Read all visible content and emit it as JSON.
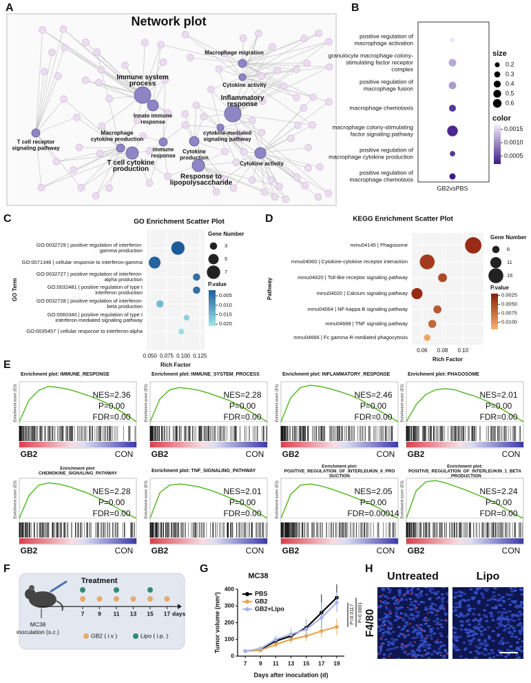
{
  "panel_labels": [
    "A",
    "B",
    "C",
    "D",
    "E",
    "F",
    "G",
    "H"
  ],
  "network": {
    "title": "Network plot",
    "nodes": [
      {
        "label": [
          "Immune system",
          "process"
        ]
      },
      {
        "label": [
          "Innate immune",
          "response"
        ]
      },
      {
        "label": [
          "Macrophage migration"
        ]
      },
      {
        "label": [
          "Cytokine activity"
        ]
      },
      {
        "label": [
          "Inflammatory",
          "response"
        ]
      },
      {
        "label": [
          "cytokine-mediated",
          "signaling pathway"
        ]
      },
      {
        "label": [
          "Macrophage",
          "cytokine production"
        ]
      },
      {
        "label": [
          "immune",
          "response"
        ]
      },
      {
        "label": [
          "Cytokine",
          "production"
        ]
      },
      {
        "label": [
          "T cell cytokine",
          "production"
        ]
      },
      {
        "label": [
          "Response to",
          "lipopolysaccharide"
        ]
      },
      {
        "label": [
          "Cytokine activity"
        ]
      },
      {
        "label": [
          "T cell receptor",
          "signaling pathway"
        ]
      }
    ]
  },
  "chart_data": [
    {
      "type": "dot",
      "categories": [
        [
          "positive regulation of",
          "macrophage activation"
        ],
        [
          "granulocyte macrophage colony-",
          "stimulating factor receptor",
          "complex"
        ],
        [
          "positive regulation of",
          "macrophage fusion"
        ],
        [
          "macrophage chemotaxis"
        ],
        [
          "macrophage colony-stimulating",
          "factor signaling pathway"
        ],
        [
          "positive regulation of",
          "macrophage cytokine production"
        ],
        [
          "positive regulation of",
          "macrophage chemotaxis"
        ]
      ],
      "column": "GB2vsPBS",
      "size": [
        0.1,
        0.3,
        0.3,
        0.25,
        0.6,
        0.15,
        0.2
      ],
      "p_values": [
        0.0016,
        0.0012,
        0.0011,
        0.0004,
        0.0003,
        0.0004,
        0.0002
      ],
      "size_legend": {
        "title": "size",
        "ticks": [
          0.2,
          0.3,
          0.4,
          0.5,
          0.6
        ]
      },
      "color_legend": {
        "title": "color",
        "ticks": [
          0.0015,
          {
            "value": 0.001,
            "label": "0.0010"
          },
          0.0005
        ]
      },
      "clim": [
        0.0002,
        0.0017
      ],
      "colors": [
        "#3f1a8a",
        "#f3f1f9"
      ]
    },
    {
      "type": "scatter",
      "title": "GO Enrichment Scatter Plot",
      "x_label": "Rich Factor",
      "y_label": "GO Term",
      "categories": [
        [
          "GO:0032729 | positive regulation of interferon-",
          "gamma production"
        ],
        [
          "GO:0071346 | cellular response to interferon-gamma"
        ],
        [
          "GO:0032727 | positive regulation of interferon-",
          "alpha production"
        ],
        [
          "GO:0032481 | positive regulation of type I",
          "interferon production"
        ],
        [
          "GO:0032728 | positive regulation of interferon-",
          "beta production"
        ],
        [
          "GO:0060340 | positive regulation of type I",
          "interferon-mediated signaling pathway"
        ],
        [
          "GO:0035457 | cellular response to interferon-alpha"
        ]
      ],
      "x": [
        0.092,
        0.057,
        0.12,
        0.12,
        0.065,
        0.105,
        0.097
      ],
      "gene_number": [
        7,
        6,
        3,
        3,
        3,
        2,
        2
      ],
      "p_values": [
        0.002,
        0.003,
        0.005,
        0.005,
        0.015,
        0.018,
        0.02
      ],
      "xlim": [
        0.045,
        0.132
      ],
      "xticks": [
        {
          "value": 0.05,
          "label": "0.050"
        },
        0.075,
        {
          "value": 0.1,
          "label": "0.100"
        },
        0.125
      ],
      "size_legend": {
        "title": "Gene Number",
        "ticks": [
          3,
          5,
          7
        ]
      },
      "color_legend": {
        "title": "P.value",
        "ticks": [
          0.005,
          {
            "value": 0.01,
            "label": "0.010"
          },
          0.015,
          {
            "value": 0.02,
            "label": "0.020"
          }
        ]
      },
      "clim": [
        0.002,
        0.021
      ],
      "colors": [
        "#1d5c9b",
        "#a2e6e8"
      ]
    },
    {
      "type": "scatter",
      "title": "KEGG Enrichment Scatter Plot",
      "x_label": "Rich Factor",
      "y_label": "Pathway",
      "categories": [
        "mmu04145 | Phagosome",
        "mmu04060 | Cytokine-cytokine receptor interaction",
        "mmu04620 | Toll-like receptor signaling pathway",
        "mmu04020 | Calcium signaling pathway",
        "mmu04064 | NF-kappa B signaling pathway",
        "mmu04668 | TNF signaling pathway",
        "mmu04666 | Fc gamma R-mediated phagocytosis"
      ],
      "x": [
        0.11,
        0.065,
        0.08,
        0.055,
        0.075,
        0.07,
        0.065
      ],
      "gene_number": [
        18,
        16,
        8,
        11,
        7,
        7,
        5
      ],
      "p_values": [
        0.003,
        0.004,
        0.005,
        0.003,
        0.006,
        0.007,
        0.011
      ],
      "xlim": [
        0.05,
        0.12
      ],
      "xticks": [
        0.06,
        0.08,
        {
          "value": 0.1,
          "label": "0.10"
        }
      ],
      "size_legend": {
        "title": "Gene Number",
        "ticks": [
          6,
          11,
          16
        ]
      },
      "color_legend": {
        "title": "P.value",
        "ticks": [
          0.0025,
          {
            "value": 0.005,
            "label": "0.0050"
          },
          0.0075,
          {
            "value": 0.01,
            "label": "0.0100"
          }
        ]
      },
      "clim": [
        0.002,
        0.012
      ],
      "colors": [
        "#8e1b0c",
        "#f7b56c"
      ]
    },
    {
      "type": "line",
      "title": "MC38",
      "x": [
        7,
        9,
        11,
        13,
        15,
        17,
        19
      ],
      "xlim": [
        6,
        20
      ],
      "xticks": [
        7,
        9,
        11,
        13,
        15,
        17,
        19
      ],
      "ylim": [
        0,
        400
      ],
      "yticks": [
        0,
        100,
        200,
        300,
        400
      ],
      "x_label": "Days after inoculation (d)",
      "y_label": "Tumor volume (mm³)",
      "legend": "upper left",
      "series": [
        {
          "name": "PBS",
          "color": "#000000",
          "values": [
            30,
            40,
            90,
            120,
            170,
            260,
            350
          ],
          "errors": [
            8,
            10,
            20,
            30,
            50,
            110,
            80
          ]
        },
        {
          "name": "GB2",
          "color": "#e8a54a",
          "values": [
            30,
            35,
            70,
            100,
            120,
            150,
            175
          ],
          "errors": [
            5,
            8,
            20,
            25,
            30,
            40,
            50
          ]
        },
        {
          "name": "GB2+Lipo",
          "color": "#a8b4e8",
          "values": [
            30,
            45,
            100,
            130,
            160,
            230,
            320
          ],
          "errors": [
            6,
            10,
            25,
            40,
            60,
            90,
            60
          ]
        }
      ],
      "annotations": [
        "P=0.0117",
        "P<0.0001"
      ]
    }
  ],
  "gsea": {
    "y_label": "Enrichment score (ES)",
    "left": "GB2",
    "right": "CON",
    "es_lim": [
      -0.05,
      0.7
    ],
    "plots": [
      {
        "title": [
          "Enrichment plot: IMMUNE_RESPONSE"
        ],
        "nes": "NES=2.36",
        "p": "P=0.00",
        "fdr": "FDR=0.00",
        "es": [
          0,
          0.38,
          0.55,
          0.62,
          0.6,
          0.57,
          0.52,
          0.46,
          0.4,
          0.32,
          0.22,
          0.12,
          0
        ]
      },
      {
        "title": [
          "Enrichment plot: IMMUNE_SYSTEM_PROCESS"
        ],
        "nes": "NES=2.28",
        "p": "P=0.00",
        "fdr": "FDR=0.00",
        "es": [
          0,
          0.4,
          0.56,
          0.6,
          0.58,
          0.55,
          0.5,
          0.44,
          0.38,
          0.3,
          0.2,
          0.1,
          0
        ]
      },
      {
        "title": [
          "Enrichment plot: INFLAMMATORY_RESPONSE"
        ],
        "nes": "NES=2.46",
        "p": "P=0.00",
        "fdr": "FDR=0.00",
        "es": [
          0,
          0.42,
          0.6,
          0.64,
          0.62,
          0.58,
          0.53,
          0.47,
          0.4,
          0.3,
          0.2,
          0.1,
          0
        ]
      },
      {
        "title": [
          "Enrichment plot: PHAGOSOME"
        ],
        "nes": "NES=2.01",
        "p": "P=0.00",
        "fdr": "FDR=0.00",
        "es": [
          0,
          0.3,
          0.48,
          0.56,
          0.58,
          0.56,
          0.5,
          0.45,
          0.38,
          0.3,
          0.2,
          0.1,
          0
        ]
      },
      {
        "title": [
          "Enrichment plot:",
          "CHEMOKINE_SIGNALING_PATHWAY"
        ],
        "nes": "NES=2.28",
        "p": "P=0.00",
        "fdr": "FDR=0.00",
        "es": [
          0,
          0.4,
          0.58,
          0.62,
          0.6,
          0.56,
          0.5,
          0.44,
          0.36,
          0.28,
          0.18,
          0.08,
          0
        ]
      },
      {
        "title": [
          "Enrichment plot: TNF_SIGNALING_PATHWAY"
        ],
        "nes": "NES=2.01",
        "p": "P=0.00",
        "fdr": "FDR=0.00",
        "es": [
          0,
          0.45,
          0.58,
          0.6,
          0.58,
          0.55,
          0.5,
          0.44,
          0.37,
          0.3,
          0.2,
          0.1,
          0
        ]
      },
      {
        "title": [
          "Enrichment plot:",
          "POSITIVE_REGULATION_OF_INTERLEUKIN_6_PRO",
          "DUCTION"
        ],
        "nes": "NES=2.05",
        "p": "P=0.00",
        "fdr": "FDR=0.00014",
        "es": [
          0,
          0.42,
          0.58,
          0.6,
          0.57,
          0.52,
          0.46,
          0.4,
          0.33,
          0.26,
          0.18,
          0.08,
          0
        ]
      },
      {
        "title": [
          "Enrichment plot:",
          "POSITIVE_REGULATION_OF_INTERLEUKIN_1_BETA",
          "_PRODUCTION"
        ],
        "nes": "NES=2.24",
        "p": "P=0.00",
        "fdr": "FDR=0.00",
        "es": [
          0,
          0.48,
          0.64,
          0.66,
          0.62,
          0.56,
          0.5,
          0.43,
          0.36,
          0.28,
          0.18,
          0.08,
          0
        ]
      }
    ]
  },
  "timeline": {
    "title": "Treatment",
    "days": [
      7,
      9,
      11,
      13,
      15,
      17
    ],
    "unit": "days",
    "inoculation": [
      "MC38",
      "inoculation (s.c.)"
    ],
    "gb2_days": [
      7,
      9,
      11,
      13,
      15,
      17
    ],
    "lipo_days": [
      7,
      11,
      15
    ],
    "legend": [
      "GB2 ( i.v )",
      "Lipo ( i.p. )"
    ]
  },
  "images": {
    "labels": [
      "Untreated",
      "Lipo"
    ],
    "stain": "F4/80"
  }
}
